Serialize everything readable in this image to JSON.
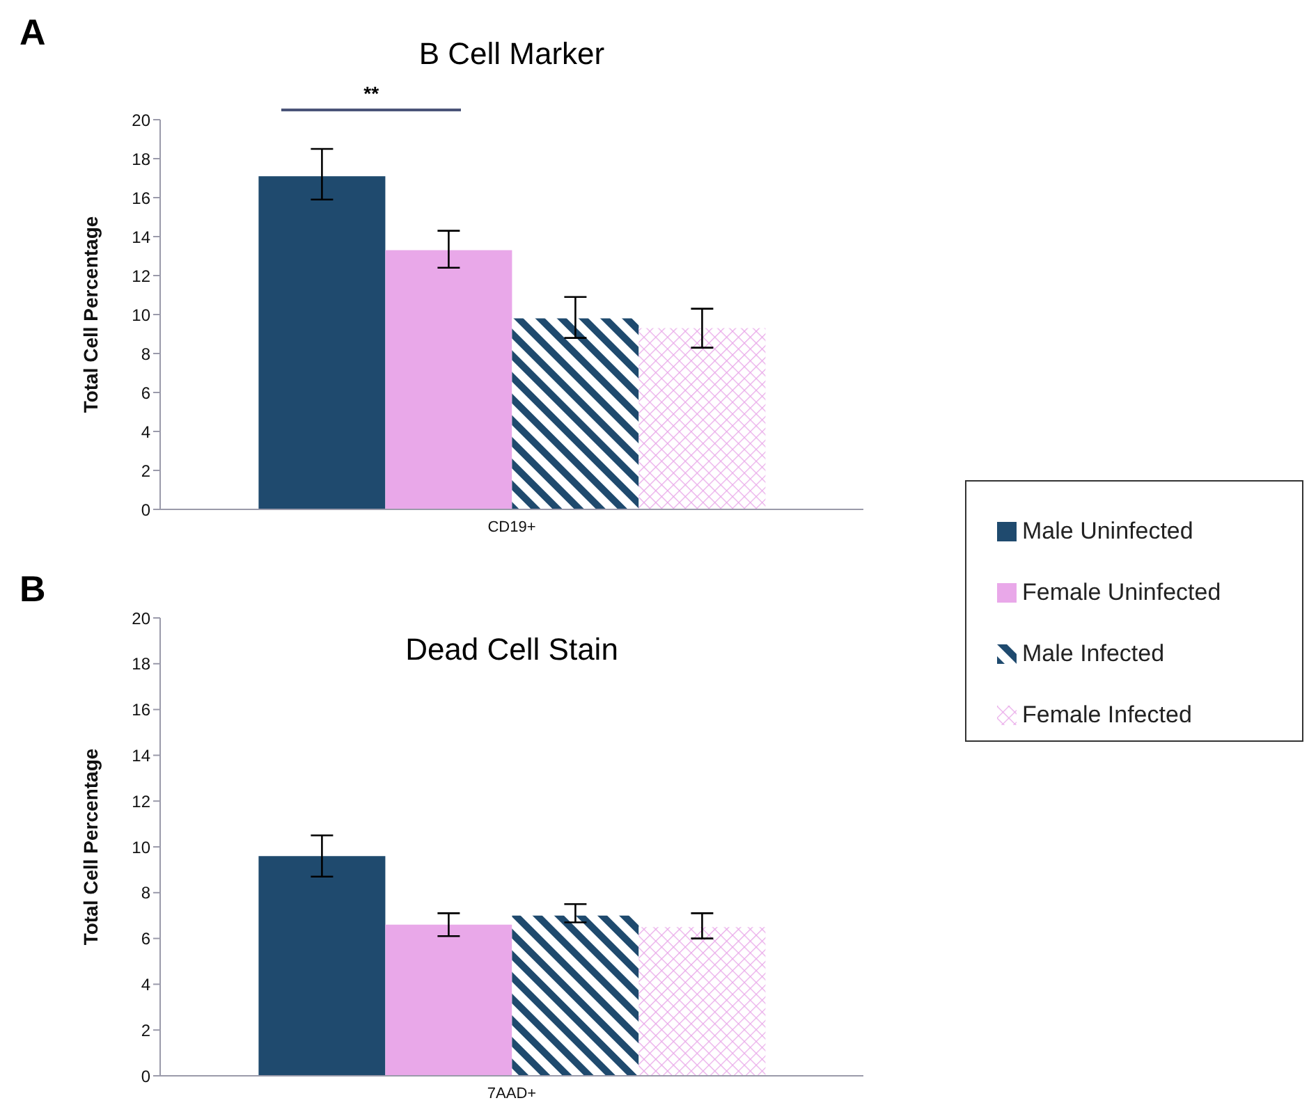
{
  "chart_data": [
    {
      "type": "bar",
      "title": "B Cell Marker",
      "ylabel": "Total Cell Percentage",
      "categories": [
        "CD19+"
      ],
      "ylim": [
        0,
        20
      ],
      "yticks": [
        0,
        2,
        4,
        6,
        8,
        10,
        12,
        14,
        16,
        18,
        20
      ],
      "grid": false,
      "legend": "right",
      "annotations": [
        "A",
        "**"
      ],
      "series": [
        {
          "name": "Male Uninfected",
          "color": "#1f4a6e",
          "values": [
            17.1
          ],
          "errors": [
            [
              15.9,
              18.5
            ]
          ]
        },
        {
          "name": "Female Uninfected",
          "color": "#e9a8e9",
          "values": [
            13.3
          ],
          "errors": [
            [
              12.4,
              14.3
            ]
          ]
        },
        {
          "name": "Male Infected",
          "color": "#1f4a6e",
          "values": [
            9.8
          ],
          "errors": [
            [
              8.8,
              10.9
            ]
          ]
        },
        {
          "name": "Female Infected",
          "color": "#e9a8e9",
          "values": [
            9.3
          ],
          "errors": [
            [
              8.3,
              10.3
            ]
          ]
        }
      ]
    },
    {
      "type": "bar",
      "title": "Dead Cell Stain",
      "ylabel": "Total Cell Percentage",
      "categories": [
        "7AAD+"
      ],
      "ylim": [
        0,
        20
      ],
      "yticks": [
        0,
        2,
        4,
        6,
        8,
        10,
        12,
        14,
        16,
        18,
        20
      ],
      "grid": false,
      "annotations": [
        "B"
      ],
      "series": [
        {
          "name": "Male Uninfected",
          "color": "#1f4a6e",
          "values": [
            9.6
          ],
          "errors": [
            [
              8.7,
              10.5
            ]
          ]
        },
        {
          "name": "Female Uninfected",
          "color": "#e9a8e9",
          "values": [
            6.6
          ],
          "errors": [
            [
              6.1,
              7.1
            ]
          ]
        },
        {
          "name": "Male Infected",
          "color": "#1f4a6e",
          "values": [
            7.0
          ],
          "errors": [
            [
              6.7,
              7.5
            ]
          ]
        },
        {
          "name": "Female Infected",
          "color": "#e9a8e9",
          "values": [
            6.5
          ],
          "errors": [
            [
              6.0,
              7.1
            ]
          ]
        }
      ]
    }
  ]
}
